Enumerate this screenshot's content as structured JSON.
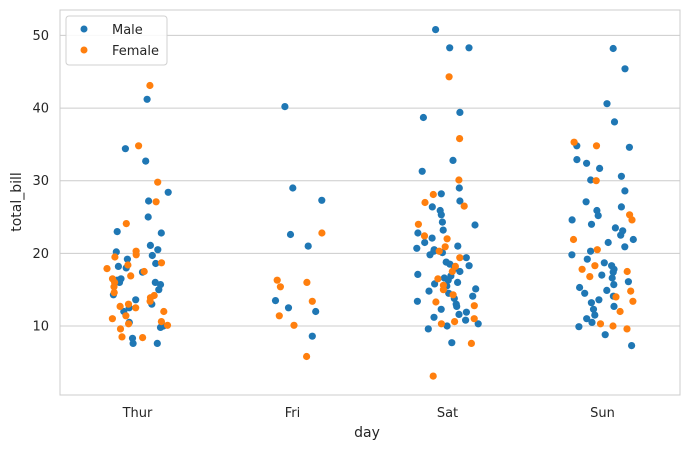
{
  "chart_data": {
    "type": "scatter",
    "style": "strip",
    "xlabel": "day",
    "ylabel": "total_bill",
    "categories": [
      "Thur",
      "Fri",
      "Sat",
      "Sun"
    ],
    "ylim": [
      0.5,
      53.5
    ],
    "yticks": [
      10,
      20,
      30,
      40,
      50
    ],
    "grid": "horizontal",
    "legend_position": "top-left",
    "series": [
      {
        "name": "Male",
        "color": "#1f77b4",
        "values": [
          [
            41.2,
            34.4,
            32.7,
            28.4,
            27.2,
            25.0,
            23.0,
            22.8,
            21.1,
            20.5,
            19.7,
            19.2,
            18.6,
            18.2,
            17.4,
            16.5,
            16.0,
            16.0,
            15.7,
            15.0,
            14.3,
            13.6,
            13.0,
            12.5,
            12.0,
            10.5,
            10.0,
            9.8,
            8.3,
            7.6,
            7.6,
            16.3,
            20.2,
            18.0
          ],
          [
            40.2,
            29.0,
            27.3,
            22.6,
            21.0,
            13.5,
            12.5,
            12.0,
            8.6
          ],
          [
            50.8,
            48.3,
            48.3,
            39.4,
            38.7,
            32.8,
            31.3,
            29.0,
            28.2,
            27.2,
            26.4,
            25.9,
            25.3,
            24.3,
            23.9,
            23.2,
            22.8,
            22.1,
            21.5,
            21.0,
            20.7,
            20.5,
            20.3,
            20.1,
            19.8,
            19.4,
            18.8,
            18.5,
            18.3,
            17.9,
            17.5,
            17.1,
            16.9,
            16.6,
            16.3,
            16.0,
            15.8,
            15.5,
            15.1,
            14.8,
            14.5,
            14.1,
            13.8,
            13.4,
            13.0,
            12.7,
            12.3,
            11.9,
            11.6,
            11.2,
            10.8,
            10.3,
            10.0,
            9.6,
            7.7
          ],
          [
            48.2,
            45.4,
            40.6,
            38.1,
            34.8,
            34.6,
            32.9,
            32.4,
            31.7,
            30.6,
            30.1,
            28.6,
            27.1,
            26.4,
            25.9,
            25.2,
            24.6,
            24.0,
            23.5,
            23.1,
            22.5,
            21.9,
            21.5,
            20.9,
            20.3,
            19.8,
            19.2,
            18.7,
            18.3,
            17.8,
            17.4,
            17.0,
            16.6,
            16.1,
            15.7,
            15.3,
            14.9,
            14.5,
            14.1,
            13.6,
            13.2,
            12.7,
            12.3,
            11.5,
            11.0,
            10.5,
            9.9,
            8.8,
            7.3
          ]
        ]
      },
      {
        "name": "Female",
        "color": "#ff7f0e",
        "values": [
          [
            43.1,
            34.8,
            29.8,
            27.1,
            24.1,
            20.3,
            19.8,
            19.5,
            18.7,
            18.4,
            17.9,
            17.5,
            16.9,
            16.5,
            16.0,
            15.4,
            14.6,
            14.2,
            13.9,
            13.4,
            13.0,
            12.7,
            12.5,
            12.0,
            11.4,
            11.0,
            10.6,
            10.3,
            10.1,
            9.6,
            8.5,
            8.4
          ],
          [
            22.8,
            16.3,
            16.0,
            15.4,
            13.4,
            11.4,
            10.1,
            5.8
          ],
          [
            44.3,
            35.8,
            30.1,
            28.1,
            27.0,
            26.5,
            24.0,
            22.4,
            22.0,
            20.9,
            20.3,
            19.4,
            18.2,
            17.5,
            16.5,
            15.6,
            15.0,
            14.3,
            13.3,
            12.8,
            11.0,
            10.6,
            10.3,
            7.6,
            3.1
          ],
          [
            35.3,
            34.8,
            30.0,
            25.3,
            24.6,
            21.9,
            20.5,
            18.3,
            17.8,
            17.5,
            16.8,
            14.8,
            14.0,
            13.4,
            12.0,
            10.3,
            10.0,
            9.6
          ]
        ]
      }
    ]
  }
}
